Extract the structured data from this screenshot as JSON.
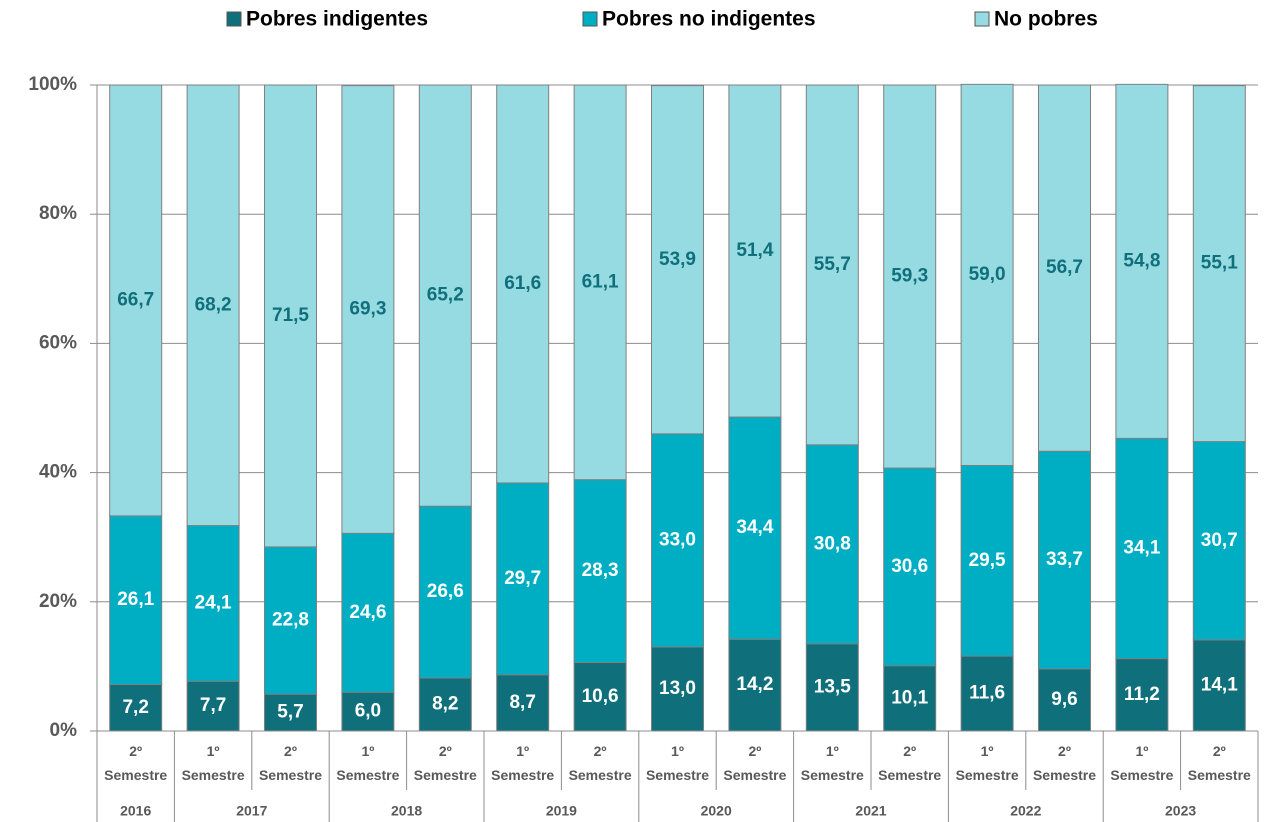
{
  "chart_data": {
    "type": "stacked_bar",
    "categories": [
      "2º Semestre",
      "1º Semestre",
      "2º Semestre",
      "1º Semestre",
      "2º Semestre",
      "1º Semestre",
      "2º Semestre",
      "1º Semestre",
      "2º Semestre",
      "1º Semestre",
      "2º Semestre",
      "1º Semestre",
      "2º Semestre",
      "1º Semestre",
      "2º Semestre"
    ],
    "groups": [
      {
        "label": "2016",
        "size": 1
      },
      {
        "label": "2017",
        "size": 2
      },
      {
        "label": "2018",
        "size": 2
      },
      {
        "label": "2019",
        "size": 2
      },
      {
        "label": "2020",
        "size": 2
      },
      {
        "label": "2021",
        "size": 2
      },
      {
        "label": "2022",
        "size": 2
      },
      {
        "label": "2023",
        "size": 2
      }
    ],
    "series": [
      {
        "name": "Pobres indigentes",
        "color": "#0f6f7b",
        "label_color": "#ffffff",
        "values": [
          7.2,
          7.7,
          5.7,
          6.0,
          8.2,
          8.7,
          10.6,
          13.0,
          14.2,
          13.5,
          10.1,
          11.6,
          9.6,
          11.2,
          14.1
        ],
        "value_labels": [
          "7,2",
          "7,7",
          "5,7",
          "6,0",
          "8,2",
          "8,7",
          "10,6",
          "13,0",
          "14,2",
          "13,5",
          "10,1",
          "11,6",
          "9,6",
          "11,2",
          "14,1"
        ]
      },
      {
        "name": "Pobres no indigentes",
        "color": "#00aec4",
        "label_color": "#ffffff",
        "values": [
          26.1,
          24.1,
          22.8,
          24.6,
          26.6,
          29.7,
          28.3,
          33.0,
          34.4,
          30.8,
          30.6,
          29.5,
          33.7,
          34.1,
          30.7
        ],
        "value_labels": [
          "26,1",
          "24,1",
          "22,8",
          "24,6",
          "26,6",
          "29,7",
          "28,3",
          "33,0",
          "34,4",
          "30,8",
          "30,6",
          "29,5",
          "33,7",
          "34,1",
          "30,7"
        ]
      },
      {
        "name": "No pobres",
        "color": "#97dbe2",
        "label_color": "#0f6f7b",
        "values": [
          66.7,
          68.2,
          71.5,
          69.3,
          65.2,
          61.6,
          61.1,
          53.9,
          51.4,
          55.7,
          59.3,
          59.0,
          56.7,
          54.8,
          55.1
        ],
        "value_labels": [
          "66,7",
          "68,2",
          "71,5",
          "69,3",
          "65,2",
          "61,6",
          "61,1",
          "53,9",
          "51,4",
          "55,7",
          "59,3",
          "59,0",
          "56,7",
          "54,8",
          "55,1"
        ]
      }
    ],
    "ylim": [
      0,
      100
    ],
    "yticks": [
      {
        "value": 0,
        "label": "0%"
      },
      {
        "value": 20,
        "label": "20%"
      },
      {
        "value": 40,
        "label": "40%"
      },
      {
        "value": 60,
        "label": "60%"
      },
      {
        "value": 80,
        "label": "80%"
      },
      {
        "value": 100,
        "label": "100%"
      }
    ],
    "grid": true,
    "legend": "top"
  }
}
